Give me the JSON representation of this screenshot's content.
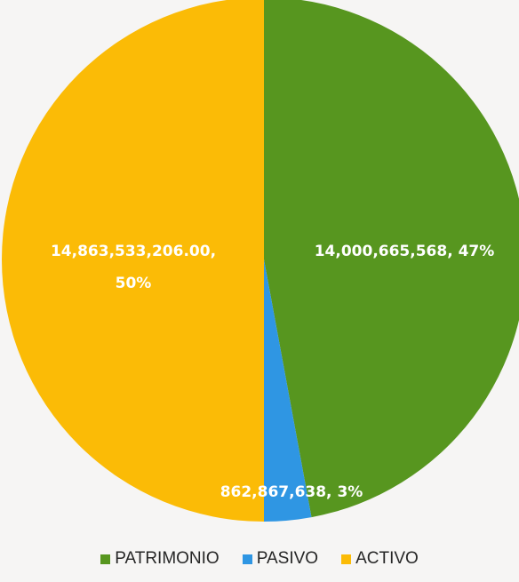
{
  "chart_data": {
    "type": "pie",
    "title": "",
    "slices": [
      {
        "name": "PATRIMONIO",
        "value": 14000665568,
        "percent": 47,
        "label": "14,000,665,568, 47%",
        "color": "#57961f"
      },
      {
        "name": "PASIVO",
        "value": 862867638,
        "percent": 3,
        "label": "862,867,638, 3%",
        "color": "#2f96e3"
      },
      {
        "name": "ACTIVO",
        "value": 14863533206.0,
        "percent": 50,
        "label_lines": [
          "14,863,533,206.00,",
          "50%"
        ],
        "color": "#fbbb06"
      }
    ],
    "legend": {
      "position": "bottom",
      "items": [
        "PATRIMONIO",
        "PASIVO",
        "ACTIVO"
      ]
    }
  }
}
